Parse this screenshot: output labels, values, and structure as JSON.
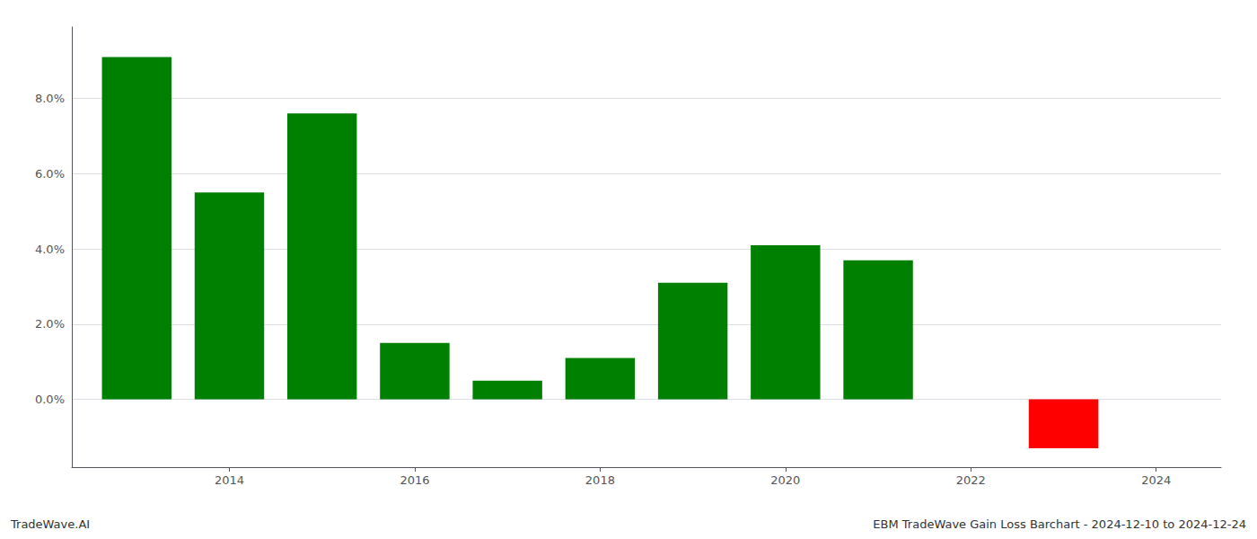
{
  "chart_data": {
    "type": "bar",
    "x": [
      2013,
      2014,
      2015,
      2016,
      2017,
      2018,
      2019,
      2020,
      2021,
      2022,
      2023
    ],
    "values": [
      0.091,
      0.055,
      0.076,
      0.015,
      0.005,
      0.011,
      0.031,
      0.041,
      0.037,
      0.0,
      -0.013
    ],
    "colors": [
      "#008000",
      "#008000",
      "#008000",
      "#008000",
      "#008000",
      "#008000",
      "#008000",
      "#008000",
      "#008000",
      "#008000",
      "#ff0000"
    ],
    "xlim": [
      2012.3,
      2024.7
    ],
    "xticks": [
      2014,
      2016,
      2018,
      2020,
      2022,
      2024
    ],
    "ylim": [
      -0.018,
      0.099
    ],
    "yticks": [
      {
        "value": 0.0,
        "label": "0.0%"
      },
      {
        "value": 0.02,
        "label": "2.0%"
      },
      {
        "value": 0.04,
        "label": "4.0%"
      },
      {
        "value": 0.06,
        "label": "6.0%"
      },
      {
        "value": 0.08,
        "label": "8.0%"
      }
    ],
    "grid": true,
    "annotations": [
      "TradeWave.AI",
      "EBM TradeWave Gain Loss Barchart - 2024-12-10 to 2024-12-24"
    ]
  }
}
